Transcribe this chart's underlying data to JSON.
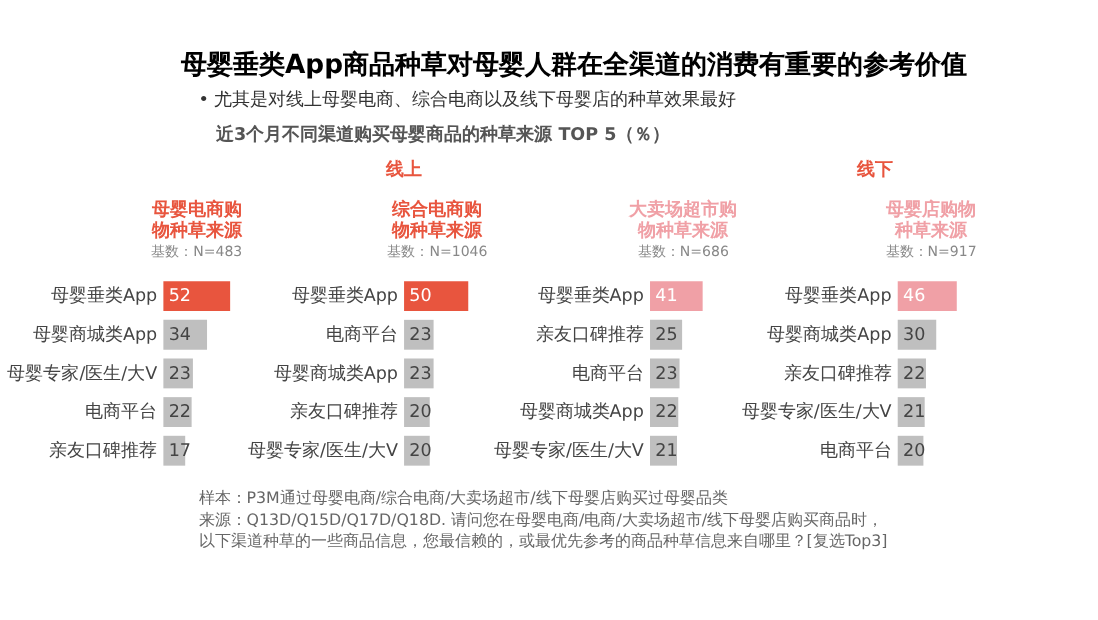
{
  "chart_data": [
    {
      "type": "other",
      "title": "母婴垂类App商品种草对母婴人群在全渠道的消费有重要的参考价值",
      "subtitle": "•   尤其是对线上母婴电商、综合电商以及线下母婴店的种草效果最好",
      "annotations": [
        "近3个月不同渠道购买母婴商品的种草来源 TOP 5（％）",
        "线上",
        "线下"
      ]
    },
    {
      "type": "bar",
      "orientation": "horizontal",
      "title": "母婴电商购物种草来源",
      "subtitle": "基数：N=483",
      "tick_labels": "y",
      "data_labels": true,
      "grid": false,
      "categories": [
        "母婴垂类App",
        "母婴商城类App",
        "母婴专家/医生/大V",
        "电商平台",
        "亲友口碑推荐"
      ],
      "values": [
        52,
        34,
        23,
        22,
        17
      ],
      "colors": [
        "#e8553e",
        "#bfbfbf",
        "#bfbfbf",
        "#bfbfbf",
        "#bfbfbf"
      ]
    },
    {
      "type": "bar",
      "orientation": "horizontal",
      "title": "综合电商购物种草来源",
      "subtitle": "基数：N=1046",
      "tick_labels": "y",
      "data_labels": true,
      "grid": false,
      "categories": [
        "母婴垂类App",
        "电商平台",
        "母婴商城类App",
        "亲友口碑推荐",
        "母婴专家/医生/大V"
      ],
      "values": [
        50,
        23,
        23,
        20,
        20
      ],
      "colors": [
        "#e8553e",
        "#bfbfbf",
        "#bfbfbf",
        "#bfbfbf",
        "#bfbfbf"
      ]
    },
    {
      "type": "bar",
      "orientation": "horizontal",
      "title": "大卖场超市购物种草来源",
      "subtitle": "基数：N=686",
      "tick_labels": "y",
      "data_labels": true,
      "grid": false,
      "categories": [
        "母婴垂类App",
        "亲友口碑推荐",
        "电商平台",
        "母婴商城类App",
        "母婴专家/医生/大V"
      ],
      "values": [
        41,
        25,
        23,
        22,
        21
      ],
      "colors": [
        "#f0a0a6",
        "#bfbfbf",
        "#bfbfbf",
        "#bfbfbf",
        "#bfbfbf"
      ]
    },
    {
      "type": "bar",
      "orientation": "horizontal",
      "title": "母婴店购物种草来源",
      "subtitle": "基数：N=917",
      "tick_labels": "y",
      "data_labels": true,
      "grid": false,
      "categories": [
        "母婴垂类App",
        "母婴商城类App",
        "亲友口碑推荐",
        "母婴专家/医生/大V",
        "电商平台"
      ],
      "values": [
        46,
        30,
        22,
        21,
        20
      ],
      "colors": [
        "#f0a0a6",
        "#bfbfbf",
        "#bfbfbf",
        "#bfbfbf",
        "#bfbfbf"
      ]
    },
    {
      "type": "other",
      "annotations": [
        "样本：P3M通过母婴电商/综合电商/大卖场超市/线下母婴店购买过母婴品类",
        "来源：Q13D/Q15D/Q17D/Q18D. 请问您在母婴电商/电商/大卖场超市/线下母婴店购买商品时，",
        "以下渠道种草的一些商品信息，您最信赖的，或最优先参考的商品种草信息来自哪里？[复选Top3]"
      ]
    }
  ]
}
